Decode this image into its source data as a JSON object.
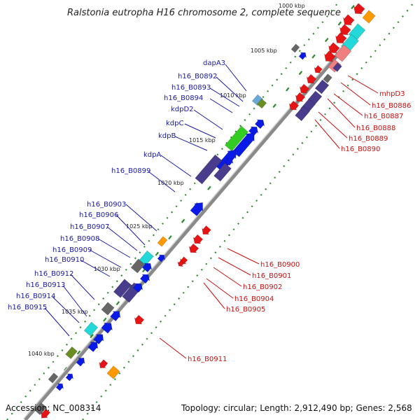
{
  "title": "Ralstonia eutropha H16 chromosome 2, complete sequence",
  "footer": {
    "accession": "Accession: NC_008314",
    "topology": "Topology: circular; Length: 2,912,490 bp; Genes: 2,568"
  },
  "ticks": [
    "1000 kbp",
    "1005 kbp",
    "1010 kbp",
    "1015 kbp",
    "1020 kbp",
    "1025 kbp",
    "1030 kbp",
    "1035 kbp",
    "1040 kbp"
  ],
  "labels_left": [
    "dapA3",
    "h16_B0892",
    "h16_B0893",
    "h16_B0894",
    "kdpD2",
    "kdpC",
    "kdpB",
    "kdpA",
    "h16_B0899",
    "h16_B0903",
    "h16_B0906",
    "h16_B0907",
    "h16_B0908",
    "h16_B0909",
    "h16_B0910",
    "h16_B0912",
    "h16_B0913",
    "h16_B0914",
    "h16_B0915"
  ],
  "labels_right": [
    "mhpD3",
    "h16_B0886",
    "h16_B0887",
    "h16_B0888",
    "h16_B0889",
    "h16_B0890",
    "h16_B0900",
    "h16_B0901",
    "h16_B0902",
    "h16_B0904",
    "h16_B0905",
    "h16_B0911"
  ],
  "colors": {
    "backbone": "#8a8a8a",
    "tick_green": "#2e8b2e",
    "label_blue": "#1a1aa6",
    "label_red": "#c81010",
    "gene_blue": "#0a1ae6",
    "gene_red": "#e61414",
    "gene_purple": "#4a3c8c",
    "gene_cyan": "#22d8d8",
    "gene_green": "#33cc22",
    "gene_grey": "#666666",
    "gene_olive": "#6b8e23",
    "gene_orange": "#ff9900",
    "gene_pink": "#f08080",
    "gene_lightblue": "#6aa8d8"
  }
}
